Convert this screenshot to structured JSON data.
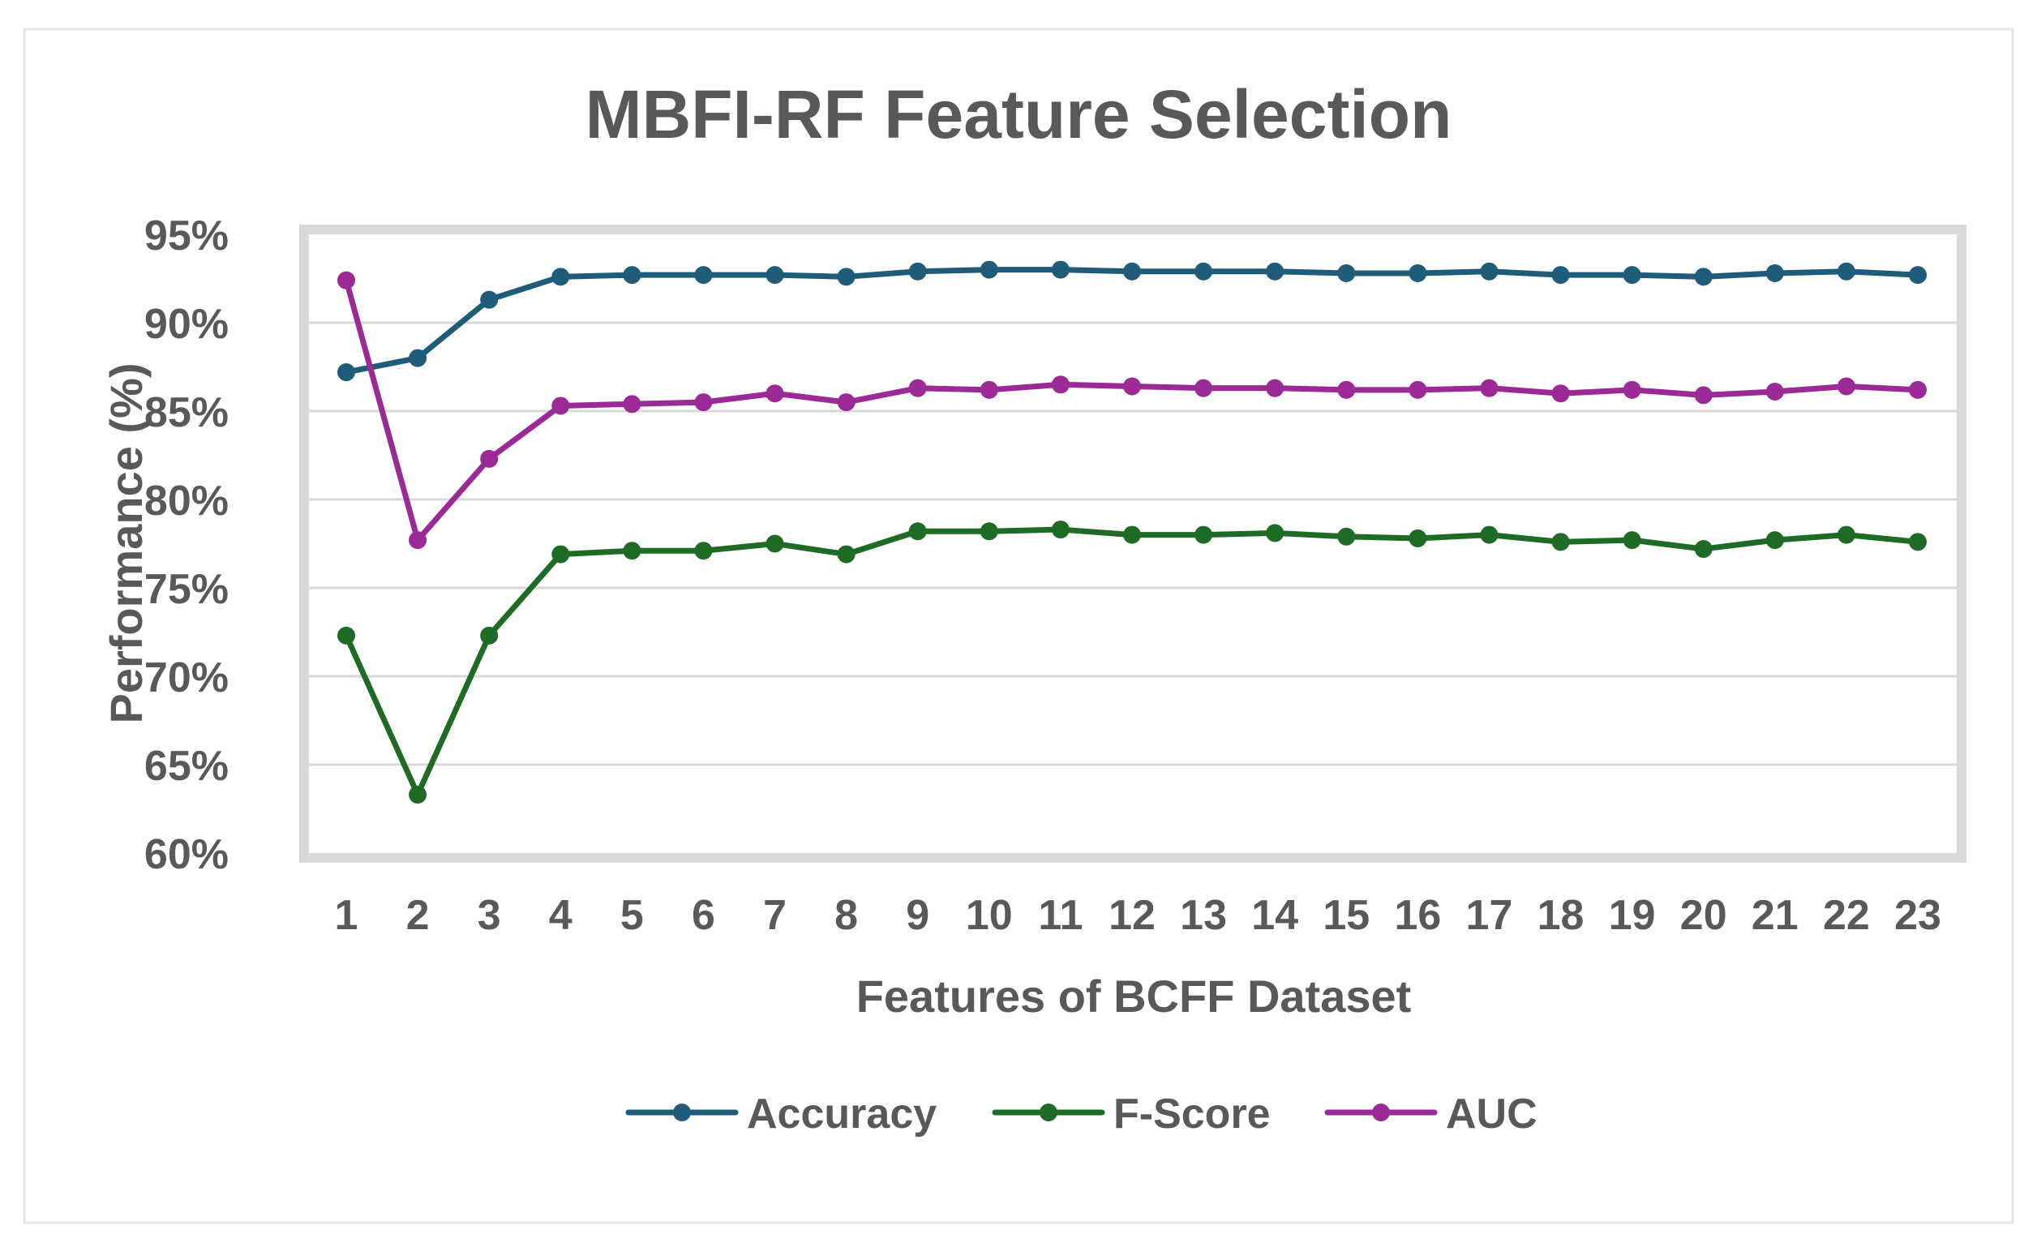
{
  "chart_data": {
    "type": "line",
    "title": "MBFI-RF Feature Selection",
    "xlabel": "Features of BCFF Dataset",
    "ylabel": "Performance  (%)",
    "categories": [
      "1",
      "2",
      "3",
      "4",
      "5",
      "6",
      "7",
      "8",
      "9",
      "10",
      "11",
      "12",
      "13",
      "14",
      "15",
      "16",
      "17",
      "18",
      "19",
      "20",
      "21",
      "22",
      "23"
    ],
    "ylim": [
      60,
      95
    ],
    "yticks": [
      60,
      65,
      70,
      75,
      80,
      85,
      90,
      95
    ],
    "ytick_labels": [
      "60%",
      "65%",
      "70%",
      "75%",
      "80%",
      "85%",
      "90%",
      "95%"
    ],
    "grid": true,
    "legend": "bottom",
    "series": [
      {
        "name": "Accuracy",
        "color": "#1F5C7A",
        "values": [
          87.2,
          88.0,
          91.3,
          92.6,
          92.7,
          92.7,
          92.7,
          92.6,
          92.9,
          93.0,
          93.0,
          92.9,
          92.9,
          92.9,
          92.8,
          92.8,
          92.9,
          92.7,
          92.7,
          92.6,
          92.8,
          92.9,
          92.7
        ]
      },
      {
        "name": "F-Score",
        "color": "#1E6B26",
        "values": [
          72.3,
          63.3,
          72.3,
          76.9,
          77.1,
          77.1,
          77.5,
          76.9,
          78.2,
          78.2,
          78.3,
          78.0,
          78.0,
          78.1,
          77.9,
          77.8,
          78.0,
          77.6,
          77.7,
          77.2,
          77.7,
          78.0,
          77.6
        ]
      },
      {
        "name": "AUC",
        "color": "#9B2A96",
        "values": [
          92.4,
          77.7,
          82.3,
          85.3,
          85.4,
          85.5,
          86.0,
          85.5,
          86.3,
          86.2,
          86.5,
          86.4,
          86.3,
          86.3,
          86.2,
          86.2,
          86.3,
          86.0,
          86.2,
          85.9,
          86.1,
          86.4,
          86.2
        ]
      }
    ]
  }
}
